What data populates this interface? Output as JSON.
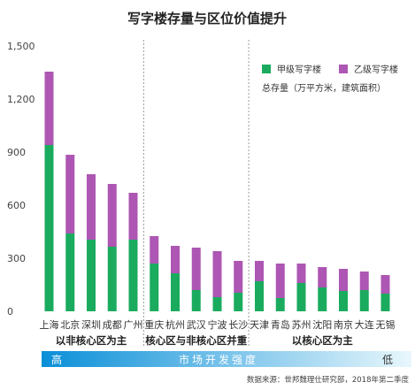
{
  "chart_data": {
    "type": "bar",
    "stacked": true,
    "title": "写字楼存量与区位价值提升",
    "unit_note": "总存量（万平方米，建筑面积）",
    "ylim": [
      0,
      1500
    ],
    "yticks": [
      "0",
      "300",
      "600",
      "900",
      "1,200",
      "1,500"
    ],
    "ytick_values": [
      0,
      300,
      600,
      900,
      1200,
      1500
    ],
    "categories": [
      "上海",
      "北京",
      "深圳",
      "成都",
      "广州",
      "重庆",
      "杭州",
      "武汉",
      "宁波",
      "长沙",
      "天津",
      "青岛",
      "苏州",
      "沈阳",
      "南京",
      "大连",
      "无锡"
    ],
    "series": [
      {
        "name": "甲级写字楼",
        "color": "#1aab5e",
        "values": [
          940,
          440,
          405,
          365,
          405,
          270,
          215,
          120,
          80,
          105,
          170,
          75,
          160,
          135,
          115,
          120,
          100
        ]
      },
      {
        "name": "乙级写字楼",
        "color": "#ad56b3",
        "values": [
          415,
          445,
          370,
          355,
          265,
          155,
          155,
          240,
          260,
          180,
          115,
          195,
          110,
          115,
          125,
          105,
          105
        ]
      }
    ],
    "legend_position": "top-right",
    "groups": [
      {
        "label": "以非核心区为主",
        "start": 0,
        "end": 4
      },
      {
        "label": "核心区与非核心区并重",
        "start": 5,
        "end": 9
      },
      {
        "label": "以核心区为主",
        "start": 10,
        "end": 16
      }
    ],
    "gradient_bar": {
      "label": "市场开发强度",
      "left_label": "高",
      "right_label": "低",
      "color_start": "#0a8fd8",
      "color_end": "#e8f7fc"
    },
    "source": "数据来源：世邦魏理仕研究部，2018年第二季度"
  }
}
